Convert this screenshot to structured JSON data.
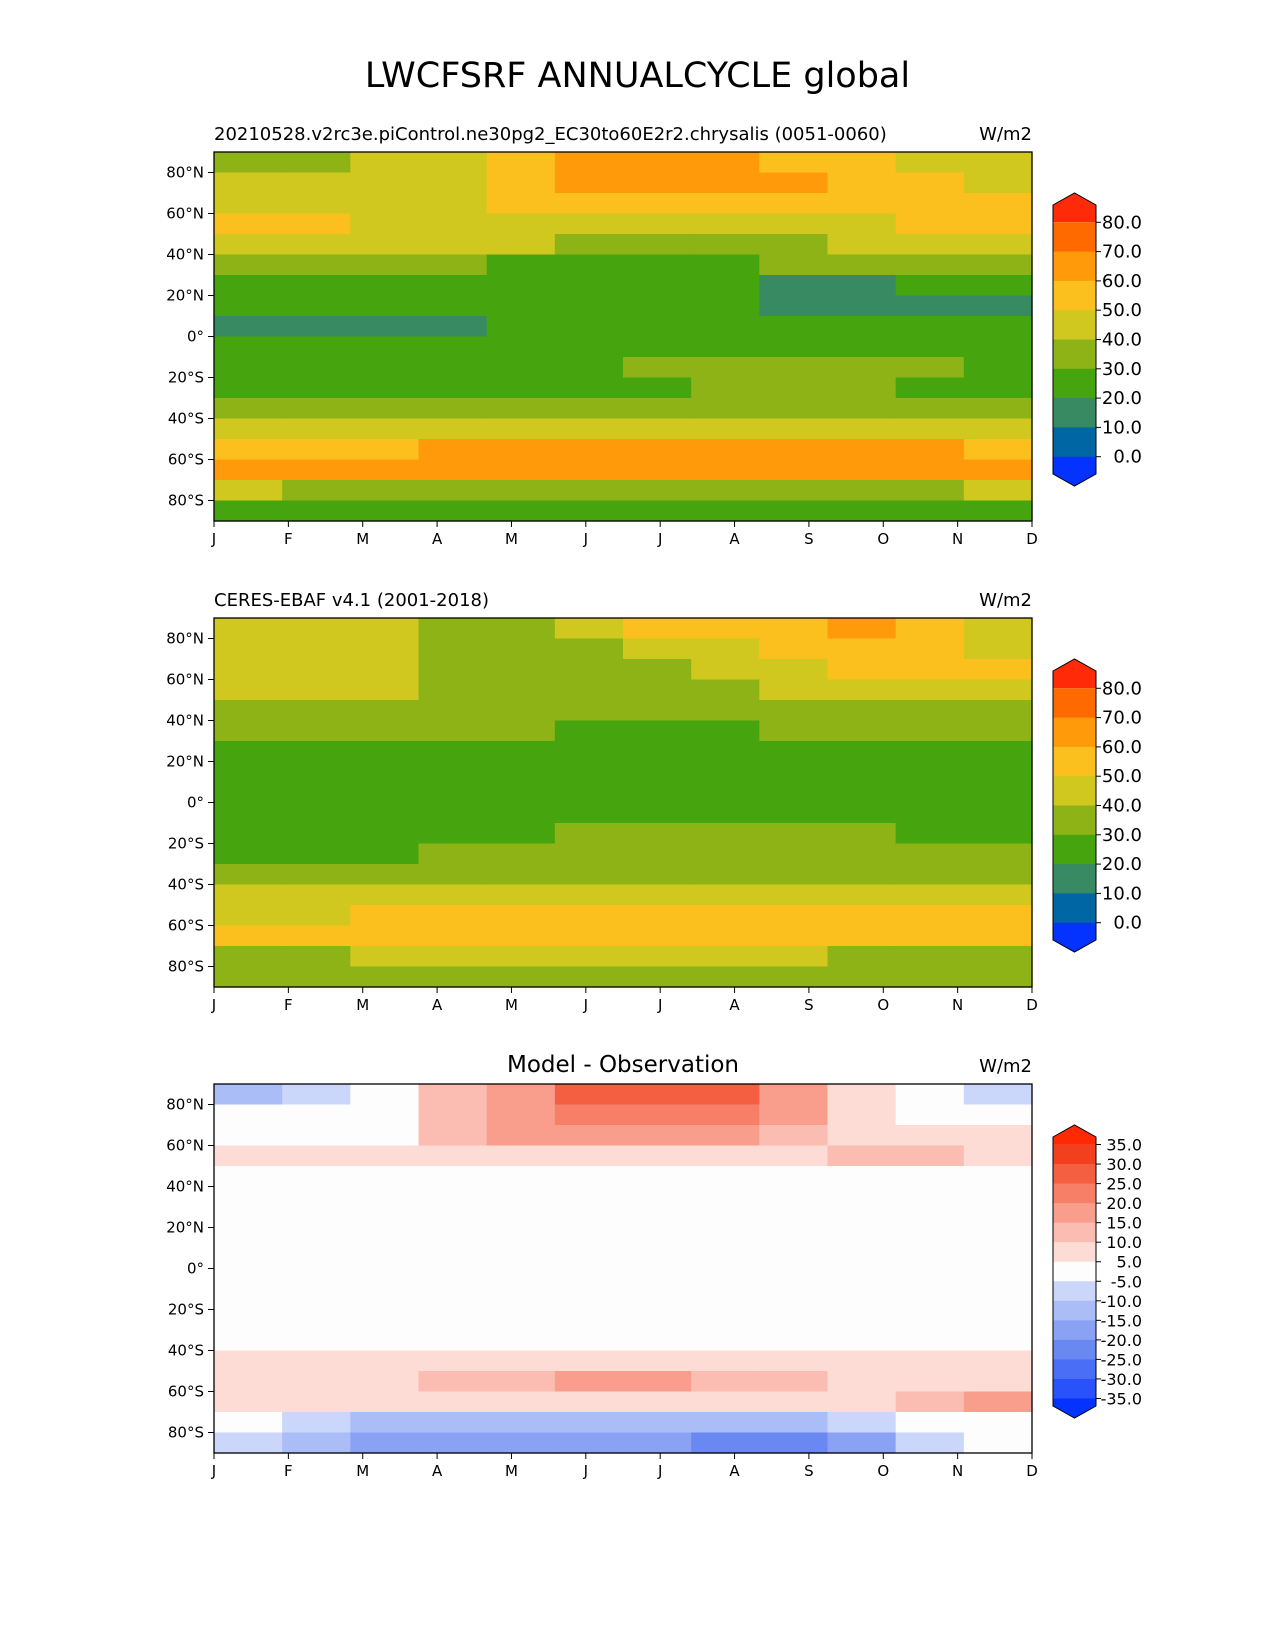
{
  "page": {
    "title": "LWCFSRF ANNUALCYCLE global"
  },
  "chart_data": [
    {
      "type": "heatmap",
      "panel": "model",
      "title": "20210528.v2rc3e.piControl.ne30pg2_EC30to60E2r2.chrysalis (0051-0060)",
      "units": "W/m2",
      "x_ticks": [
        "J",
        "F",
        "M",
        "A",
        "M",
        "J",
        "J",
        "A",
        "S",
        "O",
        "N",
        "D"
      ],
      "y_ticks": [
        "80°N",
        "60°N",
        "40°N",
        "20°N",
        "0°",
        "20°S",
        "40°S",
        "60°S",
        "80°S"
      ],
      "x_range": [
        1,
        12
      ],
      "y_range": [
        -90,
        90
      ],
      "colorbar": {
        "levels": [
          0,
          10,
          20,
          30,
          40,
          50,
          60,
          70,
          80
        ],
        "tick_labels": [
          "80.0",
          "70.0",
          "60.0",
          "50.0",
          "40.0",
          "30.0",
          "20.0",
          "10.0",
          "0.0"
        ],
        "colors": [
          "#0433ff",
          "#0066a4",
          "#378a61",
          "#46a50e",
          "#8db316",
          "#d0c81f",
          "#fcc01e",
          "#ff9a0b",
          "#ff6a00",
          "#ff2a08"
        ],
        "extend": "both"
      },
      "bands": [
        {
          "lat": 85,
          "values": [
            30,
            30,
            40,
            40,
            50,
            60,
            60,
            60,
            50,
            50,
            40,
            40
          ]
        },
        {
          "lat": 75,
          "values": [
            40,
            40,
            40,
            40,
            50,
            60,
            60,
            60,
            60,
            50,
            50,
            40
          ]
        },
        {
          "lat": 65,
          "values": [
            40,
            40,
            40,
            40,
            50,
            50,
            50,
            50,
            50,
            50,
            50,
            50
          ]
        },
        {
          "lat": 55,
          "values": [
            50,
            50,
            40,
            40,
            40,
            40,
            40,
            40,
            40,
            40,
            50,
            50
          ]
        },
        {
          "lat": 45,
          "values": [
            40,
            40,
            40,
            40,
            40,
            30,
            30,
            30,
            30,
            40,
            40,
            40
          ]
        },
        {
          "lat": 35,
          "values": [
            30,
            30,
            30,
            30,
            20,
            20,
            20,
            20,
            30,
            30,
            30,
            30
          ]
        },
        {
          "lat": 25,
          "values": [
            20,
            20,
            20,
            20,
            20,
            20,
            20,
            20,
            10,
            10,
            20,
            20
          ]
        },
        {
          "lat": 15,
          "values": [
            20,
            20,
            20,
            20,
            20,
            20,
            20,
            20,
            10,
            10,
            10,
            10
          ]
        },
        {
          "lat": 5,
          "values": [
            10,
            10,
            10,
            10,
            20,
            20,
            20,
            20,
            20,
            20,
            20,
            20
          ]
        },
        {
          "lat": -5,
          "values": [
            20,
            20,
            20,
            20,
            20,
            20,
            20,
            20,
            20,
            20,
            20,
            20
          ]
        },
        {
          "lat": -15,
          "values": [
            20,
            20,
            20,
            20,
            20,
            20,
            30,
            30,
            30,
            30,
            30,
            20
          ]
        },
        {
          "lat": -25,
          "values": [
            20,
            20,
            20,
            20,
            20,
            20,
            20,
            30,
            30,
            30,
            20,
            20
          ]
        },
        {
          "lat": -35,
          "values": [
            30,
            30,
            30,
            30,
            30,
            30,
            30,
            30,
            30,
            30,
            30,
            30
          ]
        },
        {
          "lat": -45,
          "values": [
            40,
            40,
            40,
            40,
            40,
            40,
            40,
            40,
            40,
            40,
            40,
            40
          ]
        },
        {
          "lat": -55,
          "values": [
            50,
            50,
            50,
            60,
            60,
            60,
            60,
            60,
            60,
            60,
            60,
            50
          ]
        },
        {
          "lat": -65,
          "values": [
            60,
            60,
            60,
            60,
            60,
            60,
            60,
            60,
            60,
            60,
            60,
            60
          ]
        },
        {
          "lat": -75,
          "values": [
            40,
            30,
            30,
            30,
            30,
            30,
            30,
            30,
            30,
            30,
            30,
            40
          ]
        },
        {
          "lat": -85,
          "values": [
            20,
            20,
            20,
            20,
            20,
            20,
            20,
            20,
            20,
            20,
            20,
            20
          ]
        }
      ]
    },
    {
      "type": "heatmap",
      "panel": "observation",
      "title": "CERES-EBAF v4.1 (2001-2018)",
      "units": "W/m2",
      "x_ticks": [
        "J",
        "F",
        "M",
        "A",
        "M",
        "J",
        "J",
        "A",
        "S",
        "O",
        "N",
        "D"
      ],
      "y_ticks": [
        "80°N",
        "60°N",
        "40°N",
        "20°N",
        "0°",
        "20°S",
        "40°S",
        "60°S",
        "80°S"
      ],
      "x_range": [
        1,
        12
      ],
      "y_range": [
        -90,
        90
      ],
      "colorbar": {
        "levels": [
          0,
          10,
          20,
          30,
          40,
          50,
          60,
          70,
          80
        ],
        "tick_labels": [
          "80.0",
          "70.0",
          "60.0",
          "50.0",
          "40.0",
          "30.0",
          "20.0",
          "10.0",
          "0.0"
        ],
        "colors": [
          "#0433ff",
          "#0066a4",
          "#378a61",
          "#46a50e",
          "#8db316",
          "#d0c81f",
          "#fcc01e",
          "#ff9a0b",
          "#ff6a00",
          "#ff2a08"
        ],
        "extend": "both"
      },
      "bands": [
        {
          "lat": 85,
          "values": [
            40,
            40,
            40,
            30,
            30,
            40,
            50,
            50,
            50,
            60,
            50,
            40
          ]
        },
        {
          "lat": 75,
          "values": [
            40,
            40,
            40,
            30,
            30,
            30,
            40,
            40,
            50,
            50,
            50,
            40
          ]
        },
        {
          "lat": 65,
          "values": [
            40,
            40,
            40,
            30,
            30,
            30,
            30,
            40,
            40,
            50,
            50,
            50
          ]
        },
        {
          "lat": 55,
          "values": [
            40,
            40,
            40,
            30,
            30,
            30,
            30,
            30,
            40,
            40,
            40,
            40
          ]
        },
        {
          "lat": 45,
          "values": [
            30,
            30,
            30,
            30,
            30,
            30,
            30,
            30,
            30,
            30,
            30,
            30
          ]
        },
        {
          "lat": 35,
          "values": [
            30,
            30,
            30,
            30,
            30,
            20,
            20,
            20,
            30,
            30,
            30,
            30
          ]
        },
        {
          "lat": 25,
          "values": [
            20,
            20,
            20,
            20,
            20,
            20,
            20,
            20,
            20,
            20,
            20,
            20
          ]
        },
        {
          "lat": 15,
          "values": [
            20,
            20,
            20,
            20,
            20,
            20,
            20,
            20,
            20,
            20,
            20,
            20
          ]
        },
        {
          "lat": 5,
          "values": [
            20,
            20,
            20,
            20,
            20,
            20,
            20,
            20,
            20,
            20,
            20,
            20
          ]
        },
        {
          "lat": -5,
          "values": [
            20,
            20,
            20,
            20,
            20,
            20,
            20,
            20,
            20,
            20,
            20,
            20
          ]
        },
        {
          "lat": -15,
          "values": [
            20,
            20,
            20,
            20,
            20,
            30,
            30,
            30,
            30,
            30,
            20,
            20
          ]
        },
        {
          "lat": -25,
          "values": [
            20,
            20,
            20,
            30,
            30,
            30,
            30,
            30,
            30,
            30,
            30,
            30
          ]
        },
        {
          "lat": -35,
          "values": [
            30,
            30,
            30,
            30,
            30,
            30,
            30,
            30,
            30,
            30,
            30,
            30
          ]
        },
        {
          "lat": -45,
          "values": [
            40,
            40,
            40,
            40,
            40,
            40,
            40,
            40,
            40,
            40,
            40,
            40
          ]
        },
        {
          "lat": -55,
          "values": [
            40,
            40,
            50,
            50,
            50,
            50,
            50,
            50,
            50,
            50,
            50,
            50
          ]
        },
        {
          "lat": -65,
          "values": [
            50,
            50,
            50,
            50,
            50,
            50,
            50,
            50,
            50,
            50,
            50,
            50
          ]
        },
        {
          "lat": -75,
          "values": [
            30,
            30,
            40,
            40,
            40,
            40,
            40,
            40,
            40,
            30,
            30,
            30
          ]
        },
        {
          "lat": -85,
          "values": [
            30,
            30,
            30,
            30,
            30,
            30,
            30,
            30,
            30,
            30,
            30,
            30
          ]
        }
      ]
    },
    {
      "type": "heatmap",
      "panel": "difference",
      "title": "Model - Observation",
      "units": "W/m2",
      "x_ticks": [
        "J",
        "F",
        "M",
        "A",
        "M",
        "J",
        "J",
        "A",
        "S",
        "O",
        "N",
        "D"
      ],
      "y_ticks": [
        "80°N",
        "60°N",
        "40°N",
        "20°N",
        "0°",
        "20°S",
        "40°S",
        "60°S",
        "80°S"
      ],
      "x_range": [
        1,
        12
      ],
      "y_range": [
        -90,
        90
      ],
      "colorbar": {
        "levels": [
          -35,
          -30,
          -25,
          -20,
          -15,
          -10,
          -5,
          5,
          10,
          15,
          20,
          25,
          30,
          35
        ],
        "tick_labels": [
          "35.0",
          "30.0",
          "25.0",
          "20.0",
          "15.0",
          "10.0",
          "5.0",
          "-5.0",
          "-10.0",
          "-15.0",
          "-20.0",
          "-25.0",
          "-30.0",
          "-35.0"
        ],
        "colors": [
          "#0433ff",
          "#2a52fb",
          "#4a6ef6",
          "#6a88f2",
          "#8aa2f3",
          "#aabdf7",
          "#cad6fa",
          "#fdfdfd",
          "#fddcd6",
          "#fbbdb1",
          "#f99e8c",
          "#f77f67",
          "#f45f42",
          "#f2401e",
          "#ff2a04"
        ],
        "extend": "both"
      },
      "bands": [
        {
          "lat": 85,
          "values": [
            -15,
            -10,
            -5,
            10,
            15,
            25,
            25,
            25,
            15,
            5,
            -5,
            -10
          ]
        },
        {
          "lat": 75,
          "values": [
            -5,
            -5,
            0,
            10,
            15,
            20,
            20,
            20,
            15,
            5,
            0,
            0
          ]
        },
        {
          "lat": 65,
          "values": [
            0,
            0,
            0,
            10,
            15,
            15,
            15,
            15,
            10,
            5,
            5,
            5
          ]
        },
        {
          "lat": 55,
          "values": [
            5,
            5,
            5,
            5,
            5,
            5,
            5,
            5,
            5,
            10,
            10,
            5
          ]
        },
        {
          "lat": 45,
          "values": [
            0,
            0,
            0,
            0,
            0,
            0,
            0,
            0,
            0,
            0,
            0,
            0
          ]
        },
        {
          "lat": 35,
          "values": [
            0,
            0,
            0,
            0,
            0,
            0,
            0,
            0,
            0,
            0,
            0,
            0
          ]
        },
        {
          "lat": 25,
          "values": [
            0,
            0,
            0,
            0,
            0,
            0,
            0,
            0,
            0,
            0,
            0,
            0
          ]
        },
        {
          "lat": 15,
          "values": [
            0,
            -5,
            -5,
            -5,
            0,
            0,
            0,
            0,
            0,
            0,
            0,
            0
          ]
        },
        {
          "lat": 5,
          "values": [
            0,
            0,
            0,
            0,
            0,
            0,
            0,
            0,
            0,
            0,
            0,
            0
          ]
        },
        {
          "lat": -5,
          "values": [
            0,
            0,
            0,
            0,
            0,
            0,
            0,
            0,
            0,
            0,
            0,
            0
          ]
        },
        {
          "lat": -15,
          "values": [
            0,
            0,
            0,
            0,
            0,
            0,
            0,
            0,
            0,
            0,
            0,
            0
          ]
        },
        {
          "lat": -25,
          "values": [
            0,
            0,
            0,
            -5,
            -5,
            -5,
            -5,
            -5,
            -5,
            -5,
            0,
            0
          ]
        },
        {
          "lat": -35,
          "values": [
            0,
            0,
            0,
            0,
            0,
            0,
            0,
            0,
            0,
            0,
            0,
            0
          ]
        },
        {
          "lat": -45,
          "values": [
            5,
            5,
            5,
            5,
            5,
            5,
            5,
            5,
            5,
            5,
            5,
            5
          ]
        },
        {
          "lat": -55,
          "values": [
            5,
            5,
            5,
            10,
            10,
            15,
            15,
            10,
            10,
            5,
            5,
            5
          ]
        },
        {
          "lat": -65,
          "values": [
            5,
            5,
            5,
            5,
            5,
            5,
            5,
            5,
            5,
            5,
            10,
            15
          ]
        },
        {
          "lat": -75,
          "values": [
            -5,
            -10,
            -15,
            -15,
            -15,
            -15,
            -15,
            -15,
            -15,
            -10,
            -5,
            -5
          ]
        },
        {
          "lat": -85,
          "values": [
            -10,
            -15,
            -20,
            -20,
            -20,
            -20,
            -20,
            -25,
            -25,
            -20,
            -10,
            -5
          ]
        }
      ]
    }
  ]
}
